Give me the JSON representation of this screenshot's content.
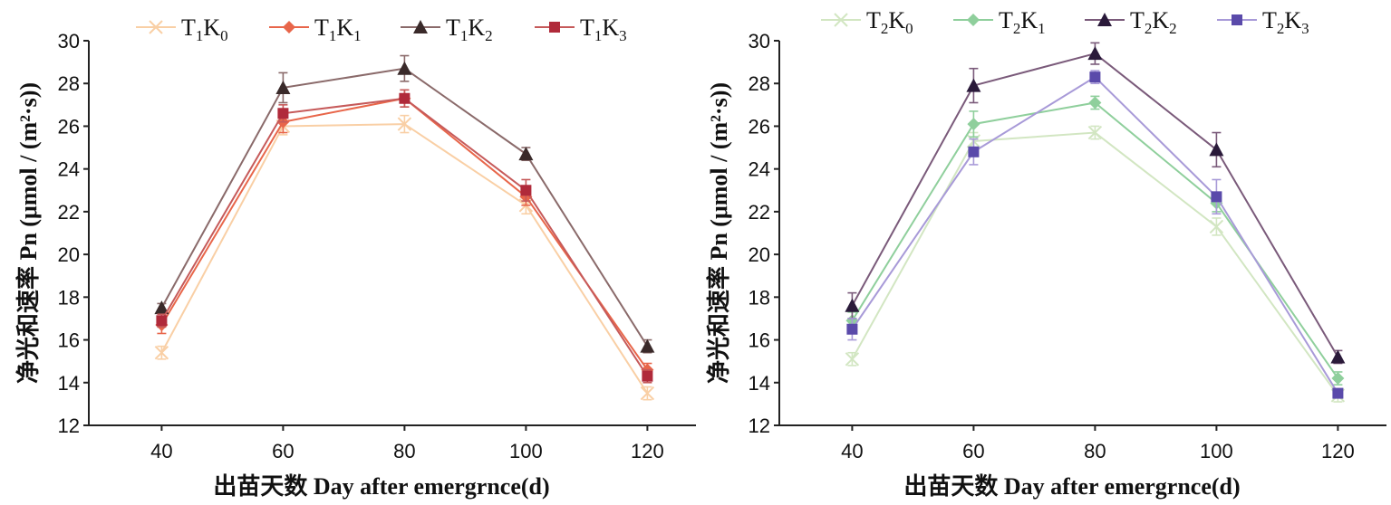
{
  "chart_data": [
    {
      "type": "line",
      "xlabel": "出苗天数 Day after emergrnce(d)",
      "ylabel": "净光和速率 Pn (μmol / (m²·s))",
      "x": [
        40,
        60,
        80,
        100,
        120
      ],
      "xlim": [
        28,
        128
      ],
      "ylim": [
        12,
        30
      ],
      "yticks": [
        12,
        14,
        16,
        18,
        20,
        22,
        24,
        26,
        28,
        30
      ],
      "legend_position": "top",
      "series": [
        {
          "name": "T1K0",
          "label": {
            "base": "T",
            "sub1": "1",
            "k": "K",
            "sub2": "0"
          },
          "marker": "x",
          "color": "#f9cfa5",
          "values": [
            15.4,
            26.0,
            26.1,
            22.3,
            13.5
          ],
          "errors": [
            0.3,
            0.4,
            0.4,
            0.4,
            0.3
          ]
        },
        {
          "name": "T1K1",
          "label": {
            "base": "T",
            "sub1": "1",
            "k": "K",
            "sub2": "1"
          },
          "marker": "diamond",
          "color": "#e8664a",
          "values": [
            16.7,
            26.2,
            27.3,
            22.7,
            14.6
          ],
          "errors": [
            0.4,
            0.5,
            0.4,
            0.4,
            0.3
          ]
        },
        {
          "name": "T1K2",
          "label": {
            "base": "T",
            "sub1": "1",
            "k": "K",
            "sub2": "2"
          },
          "marker": "triangle",
          "color": "#3a2a2a",
          "line_color": "#8a6a6a",
          "values": [
            17.5,
            27.8,
            28.7,
            24.7,
            15.7
          ],
          "errors": [
            0.2,
            0.7,
            0.6,
            0.3,
            0.3
          ]
        },
        {
          "name": "T1K3",
          "label": {
            "base": "T",
            "sub1": "1",
            "k": "K",
            "sub2": "3"
          },
          "marker": "square",
          "color": "#b02a3a",
          "line_color": "#c65a5a",
          "values": [
            16.9,
            26.6,
            27.3,
            23.0,
            14.3
          ],
          "errors": [
            0.3,
            0.4,
            0.4,
            0.5,
            0.3
          ]
        }
      ]
    },
    {
      "type": "line",
      "xlabel": "出苗天数 Day after emergrnce(d)",
      "ylabel": "净光和速率 Pn (μmol / (m²·s))",
      "x": [
        40,
        60,
        80,
        100,
        120
      ],
      "xlim": [
        28,
        128
      ],
      "ylim": [
        12,
        30
      ],
      "yticks": [
        12,
        14,
        16,
        18,
        20,
        22,
        24,
        26,
        28,
        30
      ],
      "legend_position": "top",
      "series": [
        {
          "name": "T2K0",
          "label": {
            "base": "T",
            "sub1": "2",
            "k": "K",
            "sub2": "0"
          },
          "marker": "x",
          "color": "#d2e6c2",
          "values": [
            15.1,
            25.3,
            25.7,
            21.3,
            13.4
          ],
          "errors": [
            0.3,
            0.4,
            0.3,
            0.4,
            0.3
          ]
        },
        {
          "name": "T2K1",
          "label": {
            "base": "T",
            "sub1": "2",
            "k": "K",
            "sub2": "1"
          },
          "marker": "diamond",
          "color": "#8fcf9c",
          "values": [
            16.9,
            26.1,
            27.1,
            22.4,
            14.2
          ],
          "errors": [
            0.4,
            0.6,
            0.3,
            0.4,
            0.3
          ]
        },
        {
          "name": "T2K2",
          "label": {
            "base": "T",
            "sub1": "2",
            "k": "K",
            "sub2": "2"
          },
          "marker": "triangle",
          "color": "#2a1a3a",
          "line_color": "#7a5a7a",
          "values": [
            17.6,
            27.9,
            29.4,
            24.9,
            15.2
          ],
          "errors": [
            0.6,
            0.8,
            0.5,
            0.8,
            0.3
          ]
        },
        {
          "name": "T2K3",
          "label": {
            "base": "T",
            "sub1": "2",
            "k": "K",
            "sub2": "3"
          },
          "marker": "square",
          "color": "#5a4aaa",
          "line_color": "#a89ad8",
          "values": [
            16.5,
            24.8,
            28.3,
            22.7,
            13.5
          ],
          "errors": [
            0.5,
            0.6,
            0.3,
            0.8,
            0.2
          ]
        }
      ]
    }
  ]
}
